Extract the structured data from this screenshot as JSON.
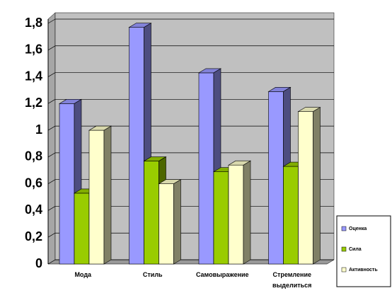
{
  "chart_data": {
    "type": "bar3d",
    "categories": [
      "Мода",
      "Стиль",
      "Самовыражение",
      "Стремление выделиться"
    ],
    "series": [
      {
        "name": "Оценка",
        "color": "#9999ff",
        "values": [
          1.2,
          1.77,
          1.43,
          1.29
        ]
      },
      {
        "name": "Сила",
        "color": "#99cc00",
        "values": [
          0.53,
          0.77,
          0.69,
          0.73
        ]
      },
      {
        "name": "Активность",
        "color": "#ffffcc",
        "values": [
          1.0,
          0.6,
          0.74,
          1.14
        ]
      }
    ],
    "ylim": [
      0,
      1.8
    ],
    "yticks": [
      0,
      {
        "value": 0.2,
        "label": "0,2"
      },
      {
        "value": 0.4,
        "label": "0,4"
      },
      {
        "value": 0.6,
        "label": "0,6"
      },
      {
        "value": 0.8,
        "label": "0,8"
      },
      1,
      {
        "value": 1.2,
        "label": "1,2"
      },
      {
        "value": 1.4,
        "label": "1,4"
      },
      {
        "value": 1.6,
        "label": "1,6"
      },
      {
        "value": 1.8,
        "label": "1,8"
      }
    ],
    "grid": true,
    "legend": "right"
  }
}
